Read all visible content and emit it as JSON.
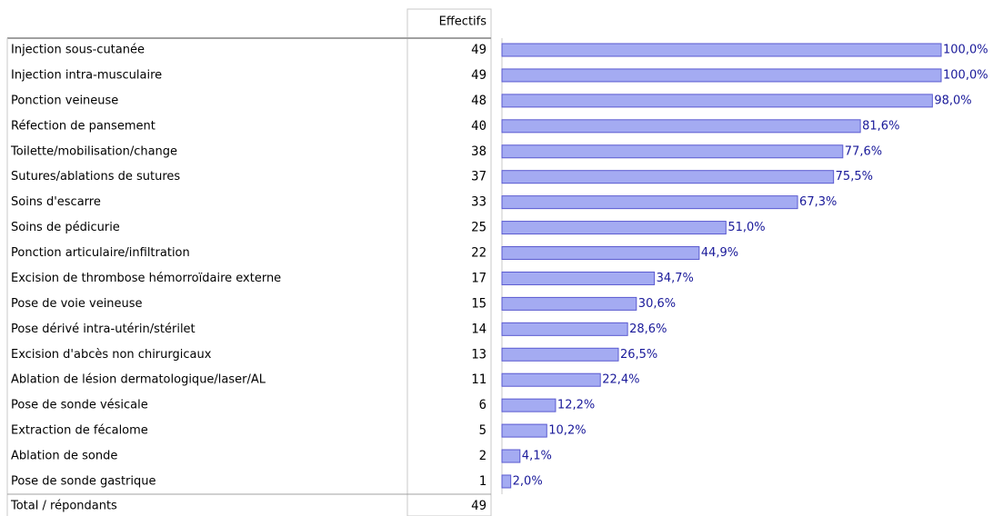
{
  "chart_data": {
    "type": "bar",
    "orientation": "horizontal",
    "column_header": "Effectifs",
    "categories": [
      "Injection sous-cutanée",
      "Injection intra-musculaire",
      "Ponction veineuse",
      "Réfection de pansement",
      "Toilette/mobilisation/change",
      "Sutures/ablations de sutures",
      "Soins d'escarre",
      "Soins de pédicurie",
      "Ponction articulaire/infiltration",
      "Excision de thrombose hémorroïdaire externe",
      "Pose de voie veineuse",
      "Pose dérivé intra-utérin/stérilet",
      "Excision d'abcès non chirurgicaux",
      "Ablation de lésion dermatologique/laser/AL",
      "Pose de sonde vésicale",
      "Extraction de fécalome",
      "Ablation de sonde",
      "Pose de sonde gastrique"
    ],
    "counts": [
      49,
      49,
      48,
      40,
      38,
      37,
      33,
      25,
      22,
      17,
      15,
      14,
      13,
      11,
      6,
      5,
      2,
      1
    ],
    "values": [
      100,
      100,
      98.0,
      81.6,
      77.6,
      75.5,
      67.3,
      51.0,
      44.9,
      34.7,
      30.6,
      28.6,
      26.5,
      22.4,
      12.2,
      10.2,
      4.1,
      2.0
    ],
    "value_labels": [
      "100,0%",
      "100,0%",
      "98,0%",
      "81,6%",
      "77,6%",
      "75,5%",
      "67,3%",
      "51,0%",
      "44,9%",
      "34,7%",
      "30,6%",
      "28,6%",
      "26,5%",
      "22,4%",
      "12,2%",
      "10,2%",
      "4,1%",
      "2,0%"
    ],
    "total_label": "Total / répondants",
    "total_count": 49,
    "color": "#a4abf2",
    "xlim": [
      0,
      100
    ]
  }
}
